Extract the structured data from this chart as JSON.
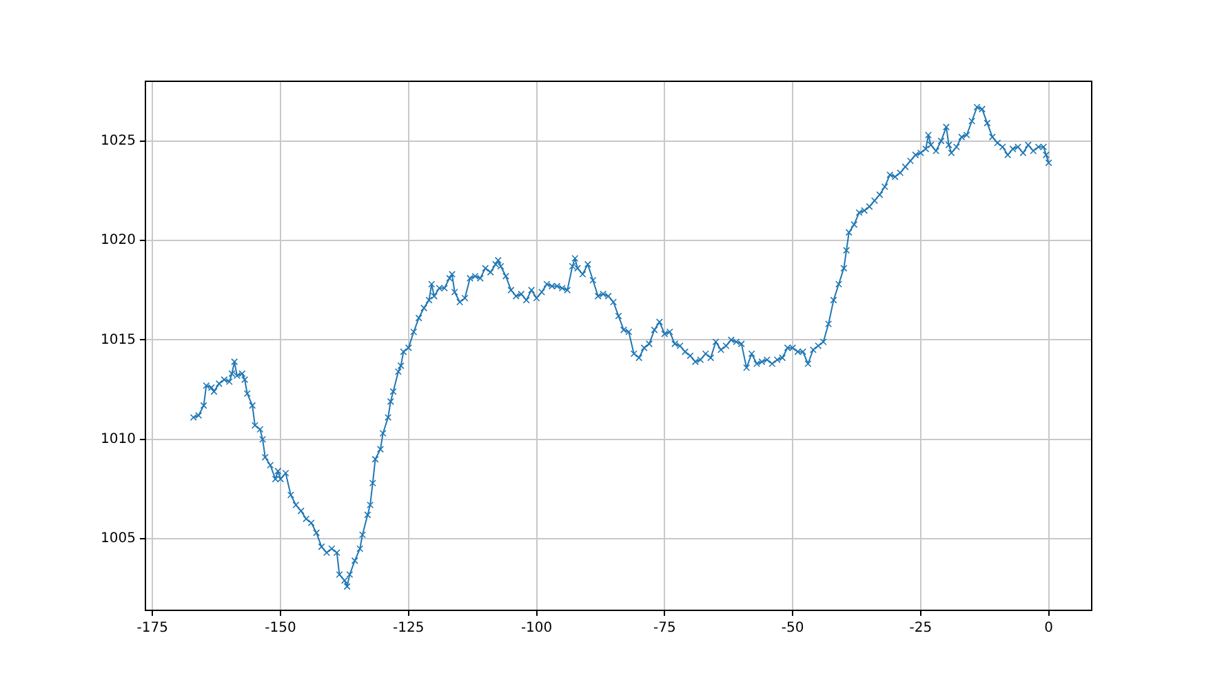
{
  "chart_data": {
    "type": "line",
    "marker": "cross",
    "grid": true,
    "legend": false,
    "xlim": [
      -176.4,
      8.4
    ],
    "ylim": [
      1001.4,
      1028
    ],
    "xticks": [
      -175,
      -150,
      -125,
      -100,
      -75,
      -50,
      -25,
      0
    ],
    "yticks": [
      1005,
      1010,
      1015,
      1020,
      1025
    ],
    "series": [
      {
        "color": "#1f77b4",
        "x": [
          -167,
          -166,
          -165,
          -164.5,
          -163.5,
          -163,
          -162,
          -161,
          -160,
          -159.5,
          -159,
          -158.5,
          -157.5,
          -157,
          -156.5,
          -155.5,
          -155,
          -154,
          -153.5,
          -153,
          -152,
          -151,
          -150.5,
          -150,
          -149,
          -148,
          -147,
          -146,
          -145,
          -144,
          -143,
          -142,
          -141,
          -140,
          -139,
          -138.5,
          -137.5,
          -137,
          -136.5,
          -135.5,
          -134.5,
          -134,
          -133,
          -132.5,
          -132,
          -131.5,
          -130.5,
          -130,
          -129,
          -128.5,
          -128,
          -127,
          -126.5,
          -126,
          -125,
          -124,
          -123,
          -122,
          -121,
          -120.5,
          -120,
          -119,
          -118,
          -117,
          -116.5,
          -116,
          -115,
          -114,
          -113,
          -112,
          -111,
          -110,
          -109,
          -108,
          -107.5,
          -107,
          -106,
          -105,
          -104,
          -103,
          -102,
          -101,
          -100,
          -99,
          -98,
          -97,
          -96,
          -95,
          -94,
          -93,
          -92.5,
          -92,
          -91,
          -90,
          -89,
          -88,
          -87,
          -86,
          -85,
          -84,
          -83,
          -82,
          -81,
          -80,
          -79,
          -78,
          -77,
          -76,
          -75,
          -74,
          -73,
          -72,
          -71,
          -70,
          -69,
          -68,
          -67,
          -66,
          -65,
          -64,
          -63,
          -62,
          -61,
          -60,
          -59,
          -58,
          -57,
          -56,
          -55,
          -54,
          -53,
          -52,
          -51,
          -50,
          -49,
          -48,
          -47,
          -46,
          -45,
          -44,
          -43,
          -42,
          -41,
          -40,
          -39.5,
          -39,
          -38,
          -37,
          -36,
          -35,
          -34,
          -33,
          -32,
          -31,
          -30,
          -29,
          -28,
          -27,
          -26,
          -25,
          -24,
          -23.5,
          -23,
          -22,
          -21,
          -20,
          -19.5,
          -19,
          -18,
          -17,
          -16,
          -15,
          -14,
          -13,
          -12,
          -11,
          -10,
          -9,
          -8,
          -7,
          -6,
          -5,
          -4,
          -3,
          -2,
          -1,
          -0.5,
          0
        ],
        "values": [
          1011.1,
          1011.2,
          1011.7,
          1012.7,
          1012.6,
          1012.4,
          1012.8,
          1013.0,
          1012.9,
          1013.3,
          1013.9,
          1013.2,
          1013.3,
          1013.0,
          1012.3,
          1011.7,
          1010.7,
          1010.5,
          1010.0,
          1009.1,
          1008.7,
          1008.0,
          1008.4,
          1008.0,
          1008.3,
          1007.2,
          1006.7,
          1006.4,
          1006.0,
          1005.8,
          1005.3,
          1004.6,
          1004.3,
          1004.5,
          1004.3,
          1003.2,
          1002.9,
          1002.6,
          1003.2,
          1003.9,
          1004.5,
          1005.2,
          1006.2,
          1006.7,
          1007.8,
          1009.0,
          1009.5,
          1010.3,
          1011.1,
          1011.9,
          1012.4,
          1013.4,
          1013.7,
          1014.4,
          1014.6,
          1015.4,
          1016.1,
          1016.6,
          1017.0,
          1017.8,
          1017.2,
          1017.6,
          1017.6,
          1018.1,
          1018.3,
          1017.4,
          1016.9,
          1017.1,
          1018.1,
          1018.2,
          1018.1,
          1018.6,
          1018.4,
          1018.8,
          1019.0,
          1018.7,
          1018.2,
          1017.5,
          1017.2,
          1017.3,
          1017.0,
          1017.5,
          1017.1,
          1017.4,
          1017.8,
          1017.7,
          1017.7,
          1017.6,
          1017.5,
          1018.7,
          1019.1,
          1018.6,
          1018.3,
          1018.8,
          1018.0,
          1017.2,
          1017.3,
          1017.2,
          1016.9,
          1016.2,
          1015.5,
          1015.4,
          1014.3,
          1014.1,
          1014.6,
          1014.8,
          1015.5,
          1015.9,
          1015.3,
          1015.4,
          1014.8,
          1014.7,
          1014.4,
          1014.2,
          1013.9,
          1014.0,
          1014.3,
          1014.1,
          1014.9,
          1014.5,
          1014.7,
          1015.0,
          1014.9,
          1014.8,
          1013.6,
          1014.3,
          1013.8,
          1013.9,
          1014.0,
          1013.8,
          1014.0,
          1014.1,
          1014.6,
          1014.6,
          1014.4,
          1014.4,
          1013.8,
          1014.5,
          1014.7,
          1014.9,
          1015.8,
          1017.0,
          1017.8,
          1018.6,
          1019.5,
          1020.4,
          1020.8,
          1021.4,
          1021.5,
          1021.7,
          1022.0,
          1022.3,
          1022.7,
          1023.3,
          1023.2,
          1023.4,
          1023.7,
          1024.0,
          1024.3,
          1024.4,
          1024.6,
          1025.3,
          1024.8,
          1024.5,
          1025.0,
          1025.7,
          1024.8,
          1024.4,
          1024.7,
          1025.2,
          1025.3,
          1026.0,
          1026.7,
          1026.6,
          1025.9,
          1025.2,
          1024.9,
          1024.7,
          1024.3,
          1024.6,
          1024.7,
          1024.4,
          1024.8,
          1024.5,
          1024.7,
          1024.7,
          1024.3,
          1023.9
        ]
      }
    ]
  }
}
